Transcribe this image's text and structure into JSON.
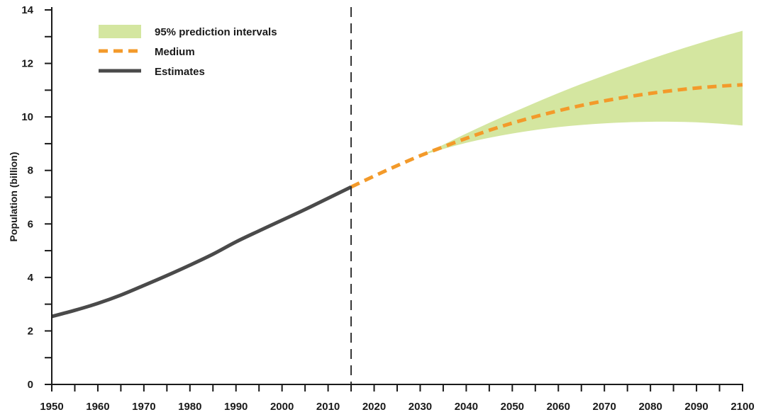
{
  "chart_data": {
    "type": "line",
    "title": "",
    "xlabel": "",
    "ylabel": "Population (billion)",
    "xlim": [
      1950,
      2100
    ],
    "ylim": [
      0,
      14
    ],
    "x_ticks": [
      1950,
      1960,
      1970,
      1980,
      1990,
      2000,
      2010,
      2020,
      2030,
      2040,
      2050,
      2060,
      2070,
      2080,
      2090,
      2100
    ],
    "y_ticks": [
      0,
      2,
      4,
      6,
      8,
      10,
      12,
      14
    ],
    "x_tick_labels": [
      "1950",
      "1960",
      "1970",
      "1980",
      "1990",
      "2000",
      "2010",
      "2020",
      "2030",
      "2040",
      "2050",
      "2060",
      "2070",
      "2080",
      "2090",
      "2100"
    ],
    "y_tick_labels": [
      "0",
      "2",
      "4",
      "6",
      "8",
      "10",
      "12",
      "14"
    ],
    "divider_year": 2015,
    "grid": false,
    "legend_position": "top-left",
    "legend": [
      "95% prediction intervals",
      "Medium",
      "Estimates"
    ],
    "colors": {
      "interval": "#d4e6a0",
      "medium": "#f39a2a",
      "estimates": "#4a4a4a",
      "axis": "#1a1a1a",
      "divider": "#333333"
    },
    "series": [
      {
        "name": "Estimates",
        "style": "solid",
        "x": [
          1950,
          1955,
          1960,
          1965,
          1970,
          1975,
          1980,
          1985,
          1990,
          1995,
          2000,
          2005,
          2010,
          2015
        ],
        "y": [
          2.54,
          2.77,
          3.03,
          3.34,
          3.7,
          4.07,
          4.46,
          4.87,
          5.33,
          5.74,
          6.14,
          6.54,
          6.96,
          7.38
        ]
      },
      {
        "name": "Medium",
        "style": "dashed",
        "x": [
          2015,
          2020,
          2025,
          2030,
          2035,
          2040,
          2045,
          2050,
          2055,
          2060,
          2065,
          2070,
          2075,
          2080,
          2085,
          2090,
          2095,
          2100
        ],
        "y": [
          7.38,
          7.79,
          8.18,
          8.55,
          8.88,
          9.2,
          9.5,
          9.77,
          10.01,
          10.23,
          10.43,
          10.6,
          10.75,
          10.88,
          10.99,
          11.08,
          11.15,
          11.2
        ]
      }
    ],
    "band": {
      "name": "95% prediction intervals",
      "x": [
        2030,
        2035,
        2040,
        2045,
        2050,
        2055,
        2060,
        2065,
        2070,
        2075,
        2080,
        2085,
        2090,
        2095,
        2100
      ],
      "lower": [
        8.55,
        8.8,
        9.03,
        9.22,
        9.38,
        9.51,
        9.62,
        9.7,
        9.76,
        9.8,
        9.82,
        9.82,
        9.8,
        9.75,
        9.68
      ],
      "upper": [
        8.55,
        8.96,
        9.38,
        9.78,
        10.16,
        10.53,
        10.89,
        11.23,
        11.55,
        11.86,
        12.16,
        12.45,
        12.72,
        12.98,
        13.22
      ]
    }
  }
}
